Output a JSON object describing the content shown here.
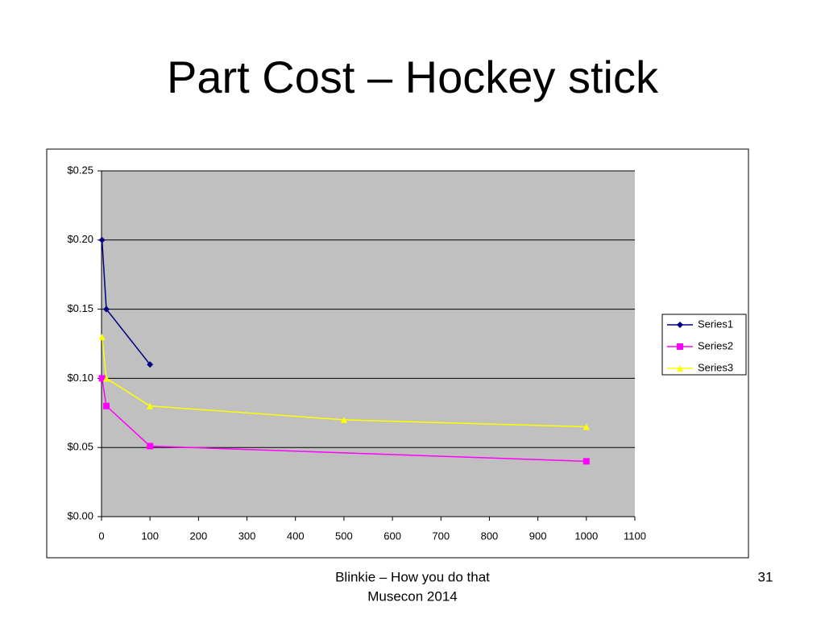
{
  "title": "Part Cost – Hockey stick",
  "footer": [
    "Blinkie – How you do that",
    "Musecon 2014"
  ],
  "page_number": 31,
  "chart_data": {
    "type": "line",
    "series": [
      {
        "name": "Series1",
        "color": "#000080",
        "marker": "diamond",
        "x": [
          1,
          10,
          100
        ],
        "values": [
          0.2,
          0.15,
          0.11
        ]
      },
      {
        "name": "Series2",
        "color": "#ff00ff",
        "marker": "square",
        "x": [
          1,
          10,
          100,
          1000
        ],
        "values": [
          0.1,
          0.08,
          0.051,
          0.04
        ]
      },
      {
        "name": "Series3",
        "color": "#ffff00",
        "marker": "triangle",
        "x": [
          1,
          10,
          100,
          500,
          1000
        ],
        "values": [
          0.13,
          0.1,
          0.08,
          0.07,
          0.065
        ]
      }
    ],
    "xlim": [
      0,
      1100
    ],
    "xticks": [
      0,
      100,
      200,
      300,
      400,
      500,
      600,
      700,
      800,
      900,
      1000,
      1100
    ],
    "ylim": [
      0,
      0.25
    ],
    "yticks": [
      {
        "value": 0,
        "label": "$0.00"
      },
      {
        "value": 0.05,
        "label": "$0.05"
      },
      {
        "value": 0.1,
        "label": "$0.10"
      },
      {
        "value": 0.15,
        "label": "$0.15"
      },
      {
        "value": 0.2,
        "label": "$0.20"
      },
      {
        "value": 0.25,
        "label": "$0.25"
      }
    ],
    "grid": true,
    "legend": "right"
  }
}
